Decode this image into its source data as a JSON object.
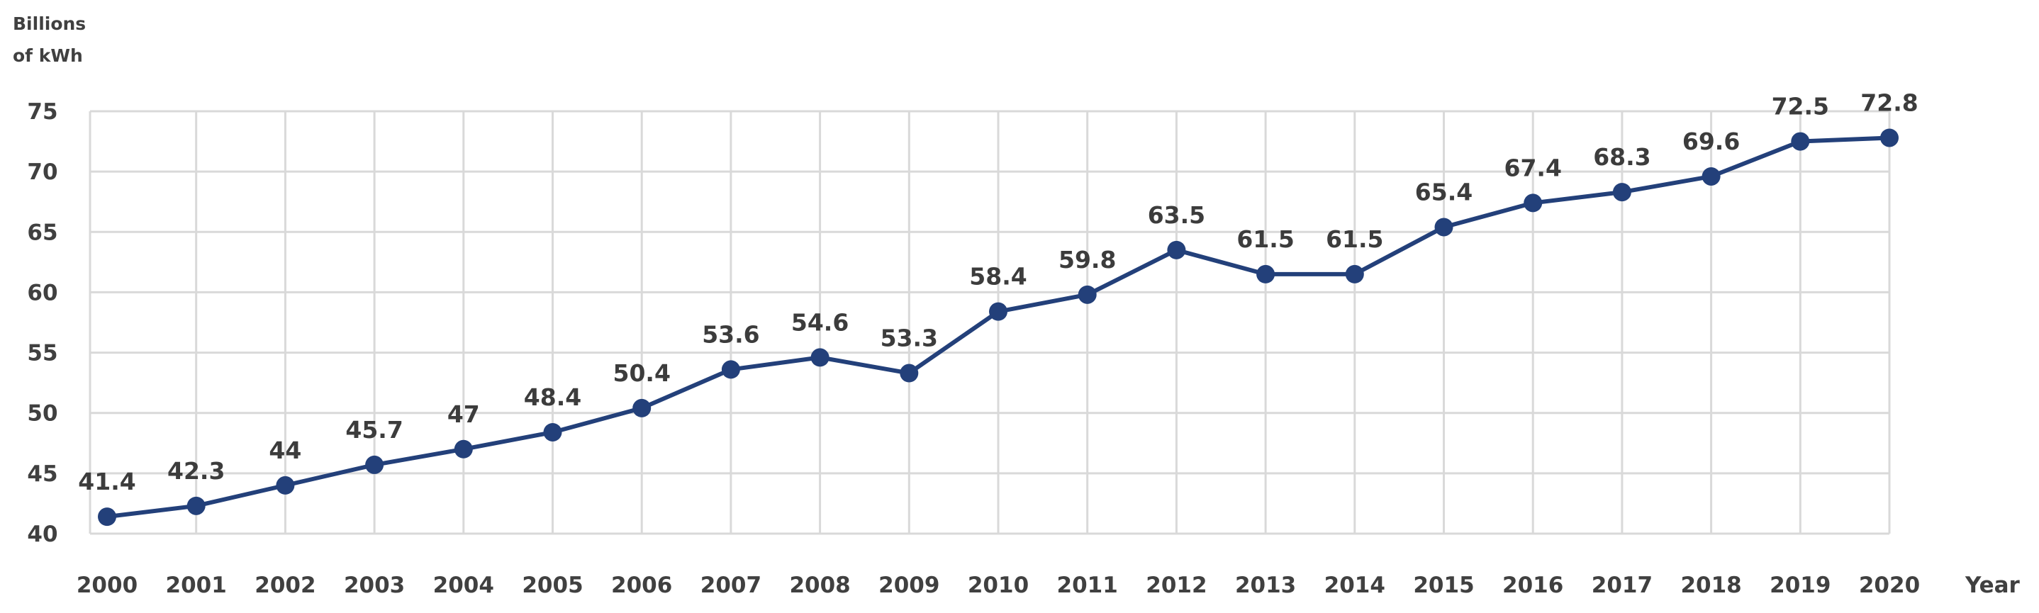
{
  "chart_data": {
    "type": "line",
    "title": "",
    "ylabel_lines": [
      "Billions",
      "of kWh"
    ],
    "xlabel": "Year",
    "ylim": [
      40,
      75
    ],
    "yticks": [
      40,
      45,
      50,
      55,
      60,
      65,
      70,
      75
    ],
    "grid": true,
    "x": [
      "2000",
      "2001",
      "2002",
      "2003",
      "2004",
      "2005",
      "2006",
      "2007",
      "2008",
      "2009",
      "2010",
      "2011",
      "2012",
      "2013",
      "2014",
      "2015",
      "2016",
      "2017",
      "2018",
      "2019",
      "2020"
    ],
    "series": [
      {
        "values": [
          41.4,
          42.3,
          44,
          45.7,
          47,
          48.4,
          50.4,
          53.6,
          54.6,
          53.3,
          58.4,
          59.8,
          63.5,
          61.5,
          61.5,
          65.4,
          67.4,
          68.3,
          69.6,
          72.5,
          72.8
        ],
        "color": "#23407a"
      }
    ]
  }
}
